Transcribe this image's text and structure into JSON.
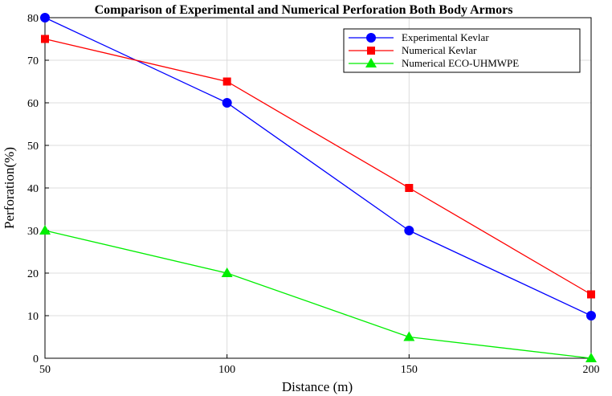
{
  "chart_data": {
    "type": "line",
    "title": "Comparison of Experimental and Numerical Perforation Both Body Armors",
    "xlabel": "Distance (m)",
    "ylabel": "Perforation(%)",
    "x": [
      50,
      100,
      150,
      200
    ],
    "xlim": [
      50,
      200
    ],
    "ylim": [
      0,
      80
    ],
    "xticks": [
      "50",
      "100",
      "150",
      "200"
    ],
    "yticks": [
      "0",
      "10",
      "20",
      "30",
      "40",
      "50",
      "60",
      "70",
      "80"
    ],
    "grid": true,
    "legend_position": "top-right",
    "series": [
      {
        "name": "Experimental Kevlar",
        "values": [
          80,
          60,
          30,
          10
        ],
        "color": "#0000ff",
        "marker": "circle"
      },
      {
        "name": "Numerical Kevlar",
        "values": [
          75,
          65,
          40,
          15
        ],
        "color": "#ff0000",
        "marker": "square"
      },
      {
        "name": "Numerical ECO-UHMWPE",
        "values": [
          30,
          20,
          5,
          0
        ],
        "color": "#00ee00",
        "marker": "triangle"
      }
    ]
  }
}
